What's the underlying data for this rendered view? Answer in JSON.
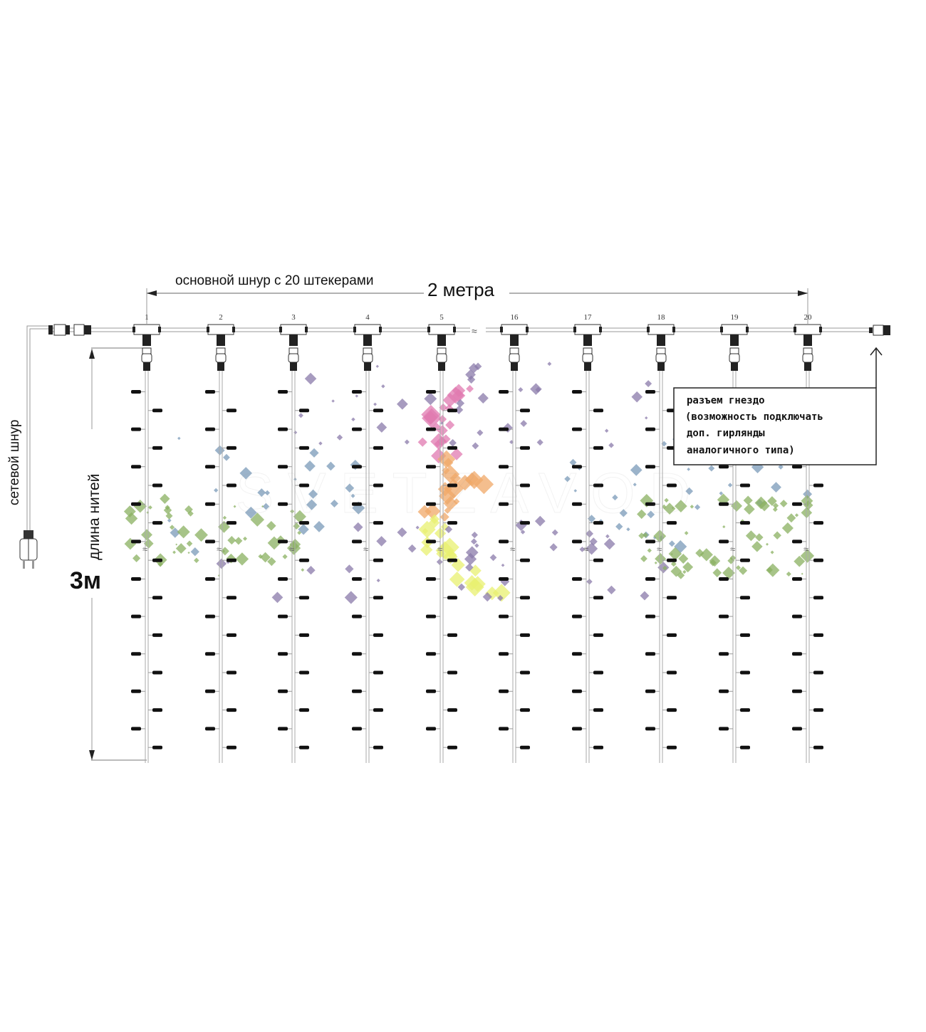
{
  "labels": {
    "main_cord": "основной шнур с 20 штекерами",
    "width": "2 метра",
    "power_cord": "сетевой шнур",
    "thread_length": "длина нитей",
    "height": "3м",
    "socket_box": [
      "разъем гнездо",
      "(возможность подключать",
      "доп. гирлянды",
      "аналогичного типа)"
    ]
  },
  "strings": [
    "1",
    "2",
    "3",
    "4",
    "5",
    "16",
    "17",
    "18",
    "19",
    "20"
  ],
  "watermark": {
    "brand": "SVETZAVOD",
    "tagline": "инженерия света"
  },
  "colors": {
    "line": "#9a9a9a",
    "bulb": "#111111",
    "sparkle_pink": "#e07ab0",
    "sparkle_orange": "#f0a868",
    "sparkle_yellow": "#e8f070",
    "sparkle_purple": "#8a7aaa",
    "sparkle_blue": "#7a9ab8",
    "sparkle_green": "#8ab060"
  }
}
